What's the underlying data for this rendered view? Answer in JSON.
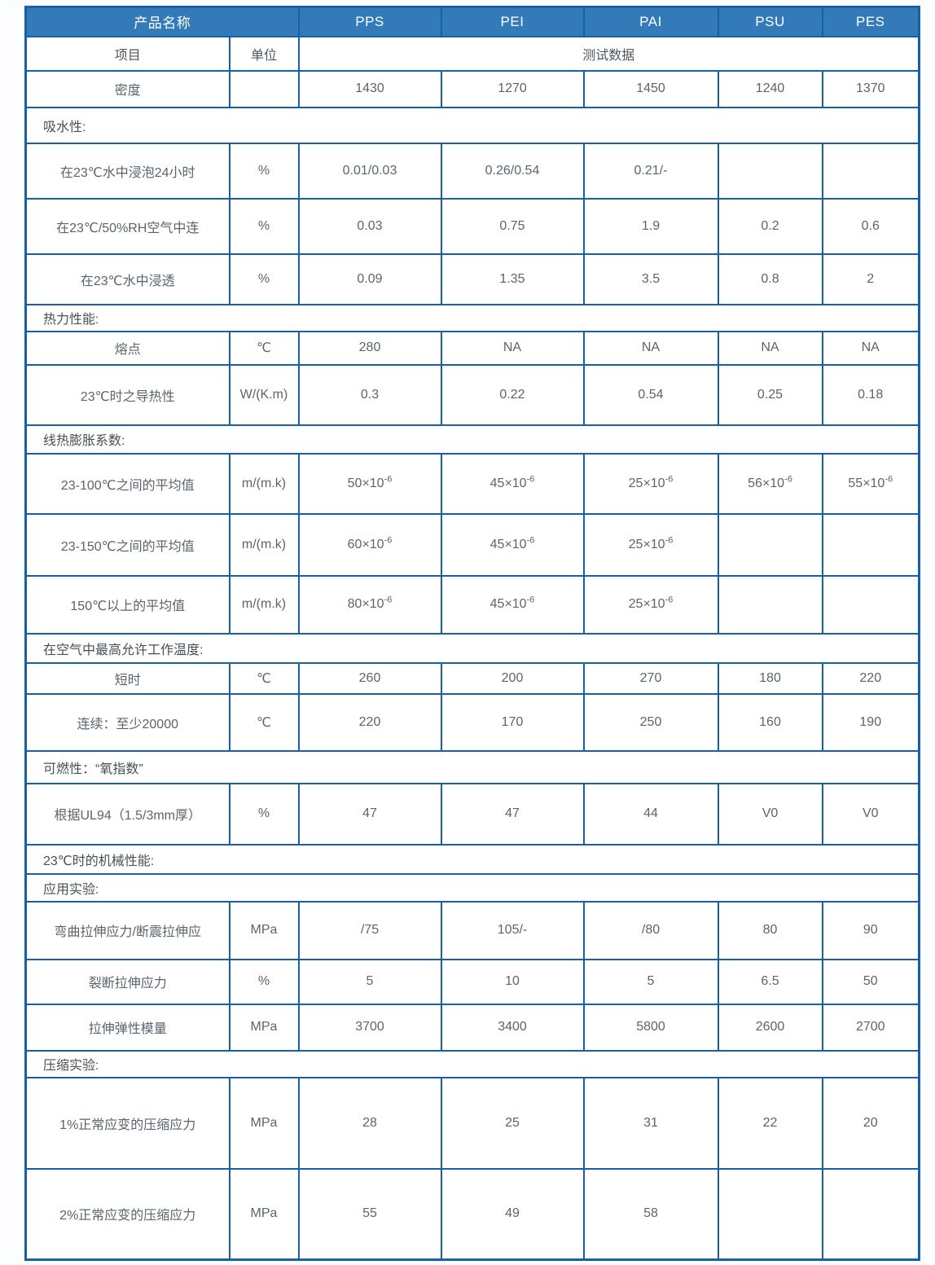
{
  "colors": {
    "header_bg": "#337ab9",
    "border": "#1560a7",
    "header_text": "#ffffff",
    "cell_text": "#5a646d",
    "section_text": "#494f56",
    "page_bg": "#fcfdfe"
  },
  "table": {
    "header": {
      "product_name_label": "产品名称",
      "products": [
        "PPS",
        "PEI",
        "PAI",
        "PSU",
        "PES"
      ]
    },
    "subheader": {
      "item_label": "项目",
      "unit_label": "单位",
      "test_data_label": "测试数据"
    },
    "rows": [
      {
        "type": "data",
        "label": "密度",
        "unit": "",
        "values": [
          "1430",
          "1270",
          "1450",
          "1240",
          "1370"
        ]
      },
      {
        "type": "section",
        "label": "吸水性:"
      },
      {
        "type": "data",
        "label": "在23℃水中浸泡24小时",
        "unit": "%",
        "values": [
          "0.01/0.03",
          "0.26/0.54",
          "0.21/-",
          "",
          ""
        ]
      },
      {
        "type": "data",
        "label": "在23℃/50%RH空气中连",
        "unit": "%",
        "values": [
          "0.03",
          "0.75",
          "1.9",
          "0.2",
          "0.6"
        ]
      },
      {
        "type": "data",
        "label": "在23℃水中浸透",
        "unit": "%",
        "values": [
          "0.09",
          "1.35",
          "3.5",
          "0.8",
          "2"
        ]
      },
      {
        "type": "section",
        "label": "热力性能:"
      },
      {
        "type": "data",
        "label": "熔点",
        "unit": "℃",
        "values": [
          "280",
          "NA",
          "NA",
          "NA",
          "NA"
        ]
      },
      {
        "type": "data",
        "label": "23℃时之导热性",
        "unit": "W/(K.m)",
        "values": [
          "0.3",
          "0.22",
          "0.54",
          "0.25",
          "0.18"
        ]
      },
      {
        "type": "section",
        "label": "线热膨胀系数:"
      },
      {
        "type": "data",
        "label": "23-100℃之间的平均值",
        "unit": "m/(m.k)",
        "values": [
          "50×10^-6",
          "45×10^-6",
          "25×10^-6",
          "56×10^-6",
          "55×10^-6"
        ]
      },
      {
        "type": "data",
        "label": "23-150℃之间的平均值",
        "unit": "m/(m.k)",
        "values": [
          "60×10^-6",
          "45×10^-6",
          "25×10^-6",
          "",
          ""
        ]
      },
      {
        "type": "data",
        "label": "150℃以上的平均值",
        "unit": "m/(m.k)",
        "values": [
          "80×10^-6",
          "45×10^-6",
          "25×10^-6",
          "",
          ""
        ]
      },
      {
        "type": "section",
        "label": "在空气中最高允许工作温度:"
      },
      {
        "type": "data",
        "label": "短时",
        "unit": "℃",
        "values": [
          "260",
          "200",
          "270",
          "180",
          "220"
        ]
      },
      {
        "type": "data",
        "label": "连续：至少20000",
        "unit": "℃",
        "values": [
          "220",
          "170",
          "250",
          "160",
          "190"
        ]
      },
      {
        "type": "section",
        "label": "可燃性：“氧指数”"
      },
      {
        "type": "data",
        "label": "根据UL94（1.5/3mm厚）",
        "unit": "%",
        "values": [
          "47",
          "47",
          "44",
          "V0",
          "V0"
        ]
      },
      {
        "type": "section",
        "label": "23℃时的机械性能:"
      },
      {
        "type": "section",
        "label": "应用实验:"
      },
      {
        "type": "data",
        "label": "弯曲拉伸应力/断震拉伸应",
        "unit": "MPa",
        "values": [
          "/75",
          "105/-",
          "/80",
          "80",
          "90"
        ]
      },
      {
        "type": "data",
        "label": "裂断拉伸应力",
        "unit": "%",
        "values": [
          "5",
          "10",
          "5",
          "6.5",
          "50"
        ]
      },
      {
        "type": "data",
        "label": "拉伸弹性模量",
        "unit": "MPa",
        "values": [
          "3700",
          "3400",
          "5800",
          "2600",
          "2700"
        ]
      },
      {
        "type": "section",
        "label": "压缩实验:"
      },
      {
        "type": "data",
        "label": "1%正常应变的压缩应力",
        "unit": "MPa",
        "values": [
          "28",
          "25",
          "31",
          "22",
          "20"
        ]
      },
      {
        "type": "data",
        "label": "2%正常应变的压缩应力",
        "unit": "MPa",
        "values": [
          "55",
          "49",
          "58",
          "",
          ""
        ]
      }
    ]
  }
}
